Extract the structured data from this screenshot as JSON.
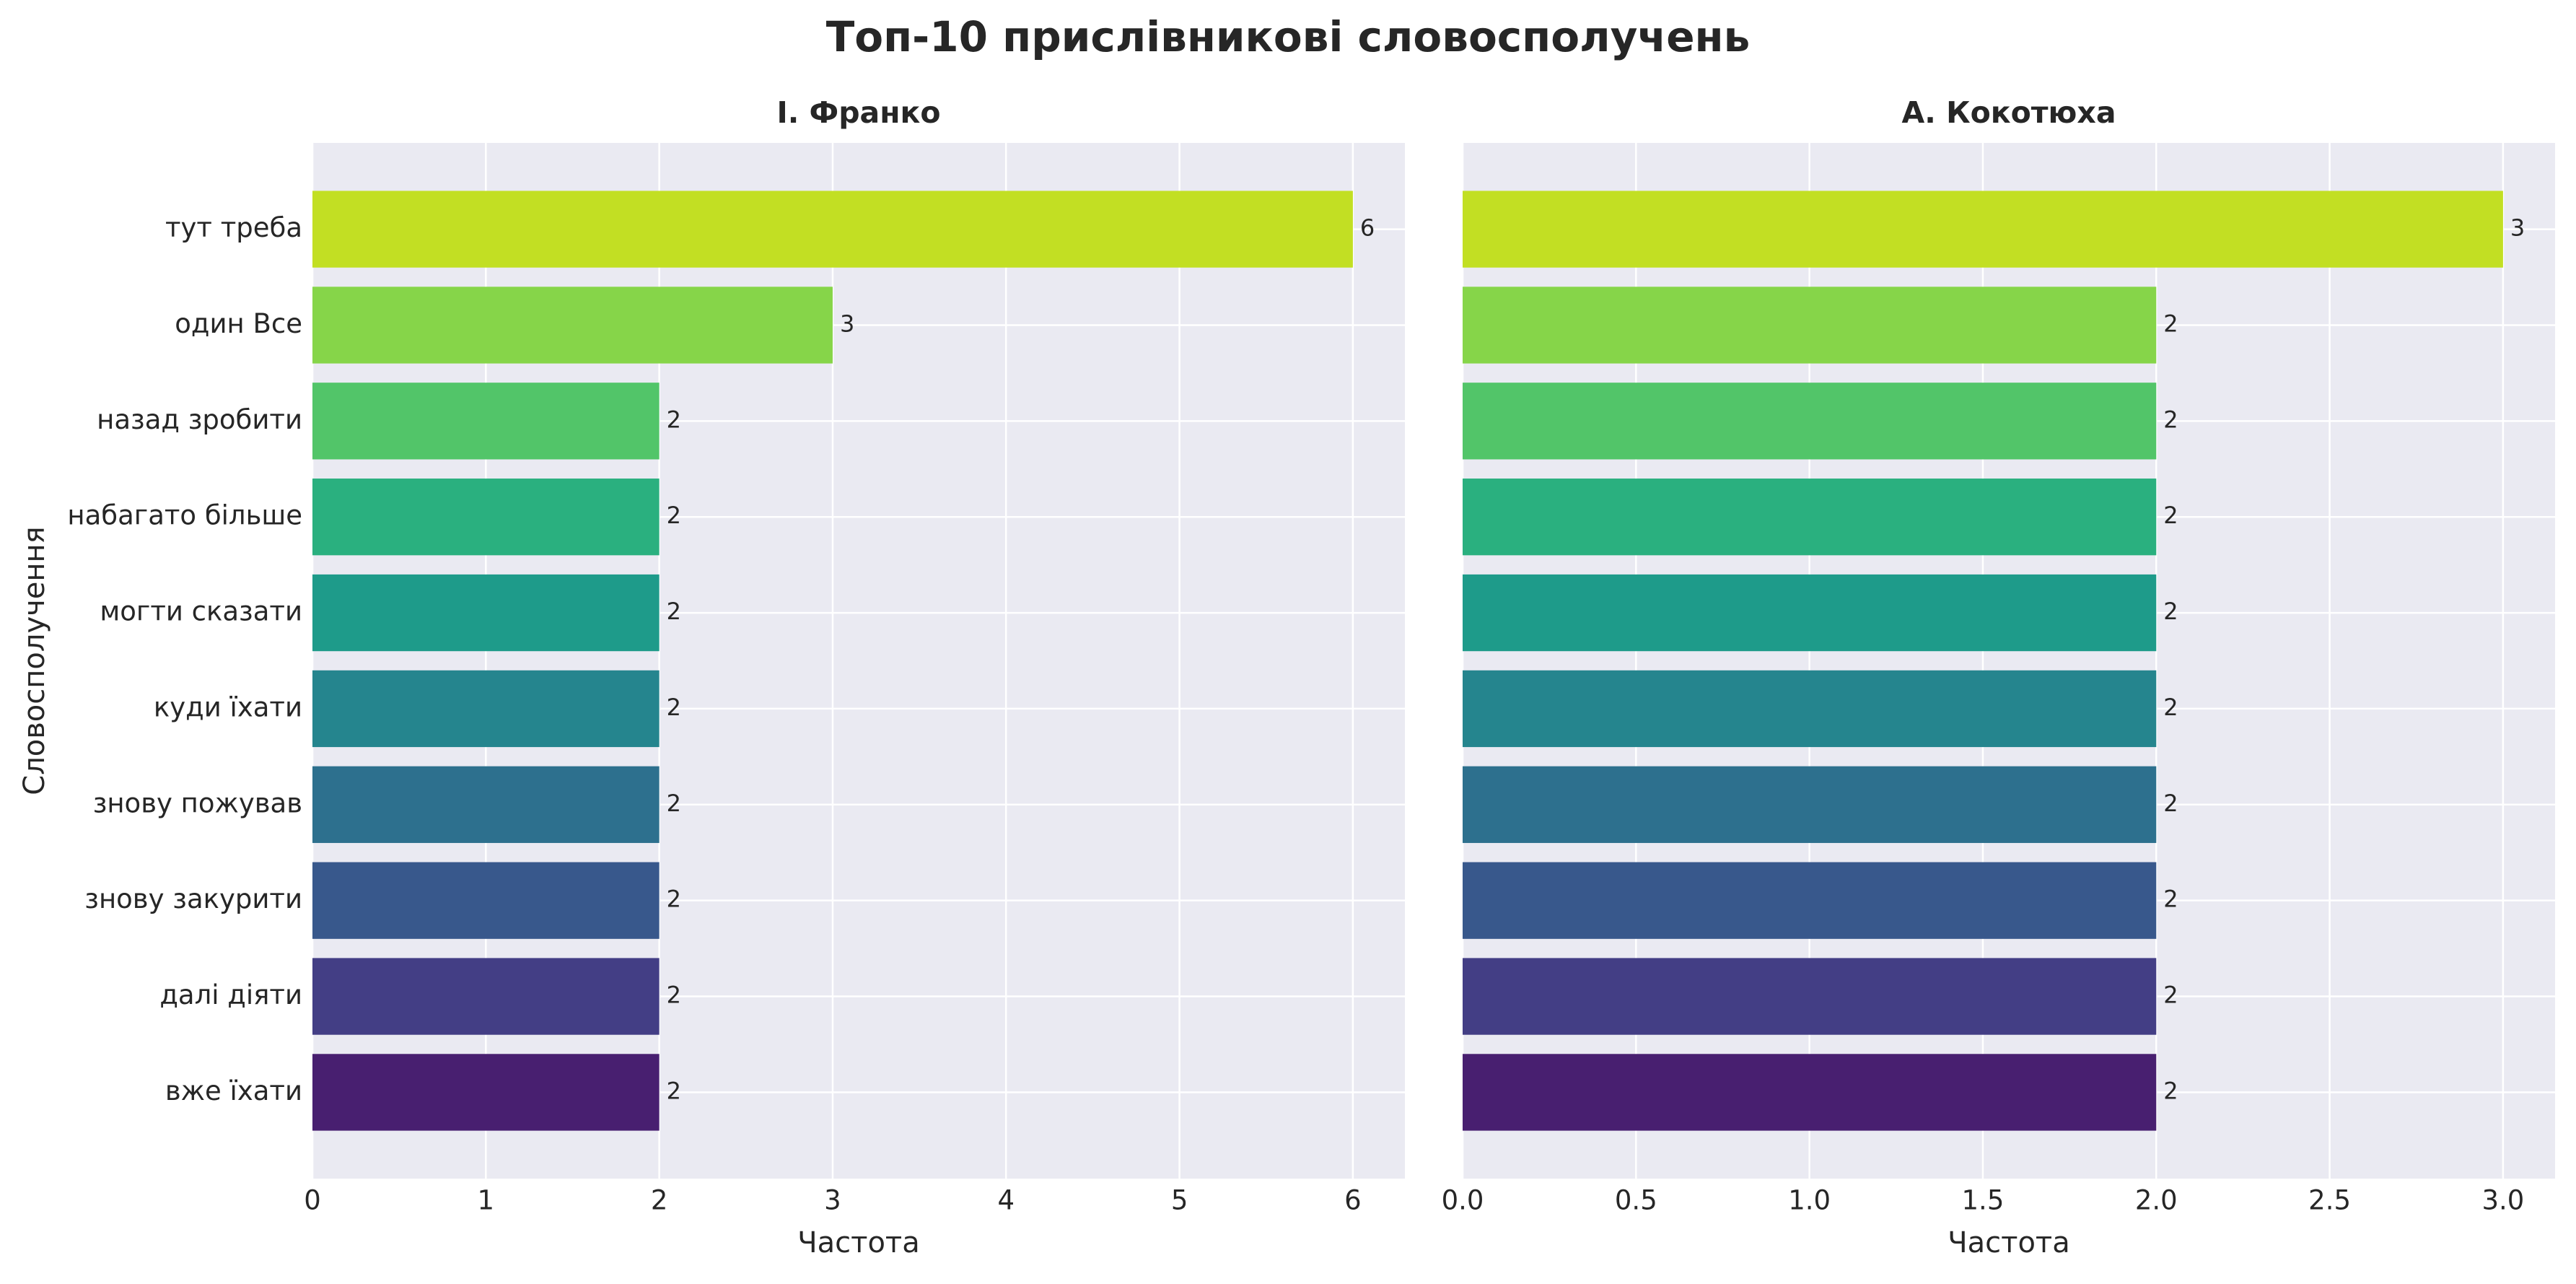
{
  "title": "Топ-10 прислівникові словосполучень",
  "chart_data": [
    {
      "type": "barh",
      "title": "І. Франко",
      "xlabel": "Частота",
      "ylabel": "Словосполучення",
      "categories": [
        "тут треба",
        "один Все",
        "назад зробити",
        "набагато більше",
        "могти сказати",
        "куди їхати",
        "знову пожував",
        "знову закурити",
        "далі діяти",
        "вже їхати"
      ],
      "values": [
        6,
        3,
        2,
        2,
        2,
        2,
        2,
        2,
        2,
        2
      ],
      "colors": [
        "#c2df23",
        "#86d549",
        "#52c569",
        "#2ab07f",
        "#1e9b8a",
        "#25858e",
        "#2d708e",
        "#38588c",
        "#433e85",
        "#481f70"
      ],
      "xlim": [
        0,
        6.3
      ],
      "xticks": [
        0,
        1,
        2,
        3,
        4,
        5,
        6
      ],
      "grid": true
    },
    {
      "type": "barh",
      "title": "А. Кокотюха",
      "xlabel": "Частота",
      "values": [
        3,
        2,
        2,
        2,
        2,
        2,
        2,
        2,
        2,
        2
      ],
      "colors": [
        "#c2df23",
        "#86d549",
        "#52c569",
        "#2ab07f",
        "#1e9b8a",
        "#25858e",
        "#2d708e",
        "#38588c",
        "#433e85",
        "#481f70"
      ],
      "xlim": [
        0,
        3.15
      ],
      "xticks": [
        {
          "value": 0,
          "label": "0.0"
        },
        0.5,
        {
          "value": 1,
          "label": "1.0"
        },
        1.5,
        {
          "value": 2,
          "label": "2.0"
        },
        2.5,
        {
          "value": 3,
          "label": "3.0"
        }
      ],
      "grid": true
    }
  ]
}
